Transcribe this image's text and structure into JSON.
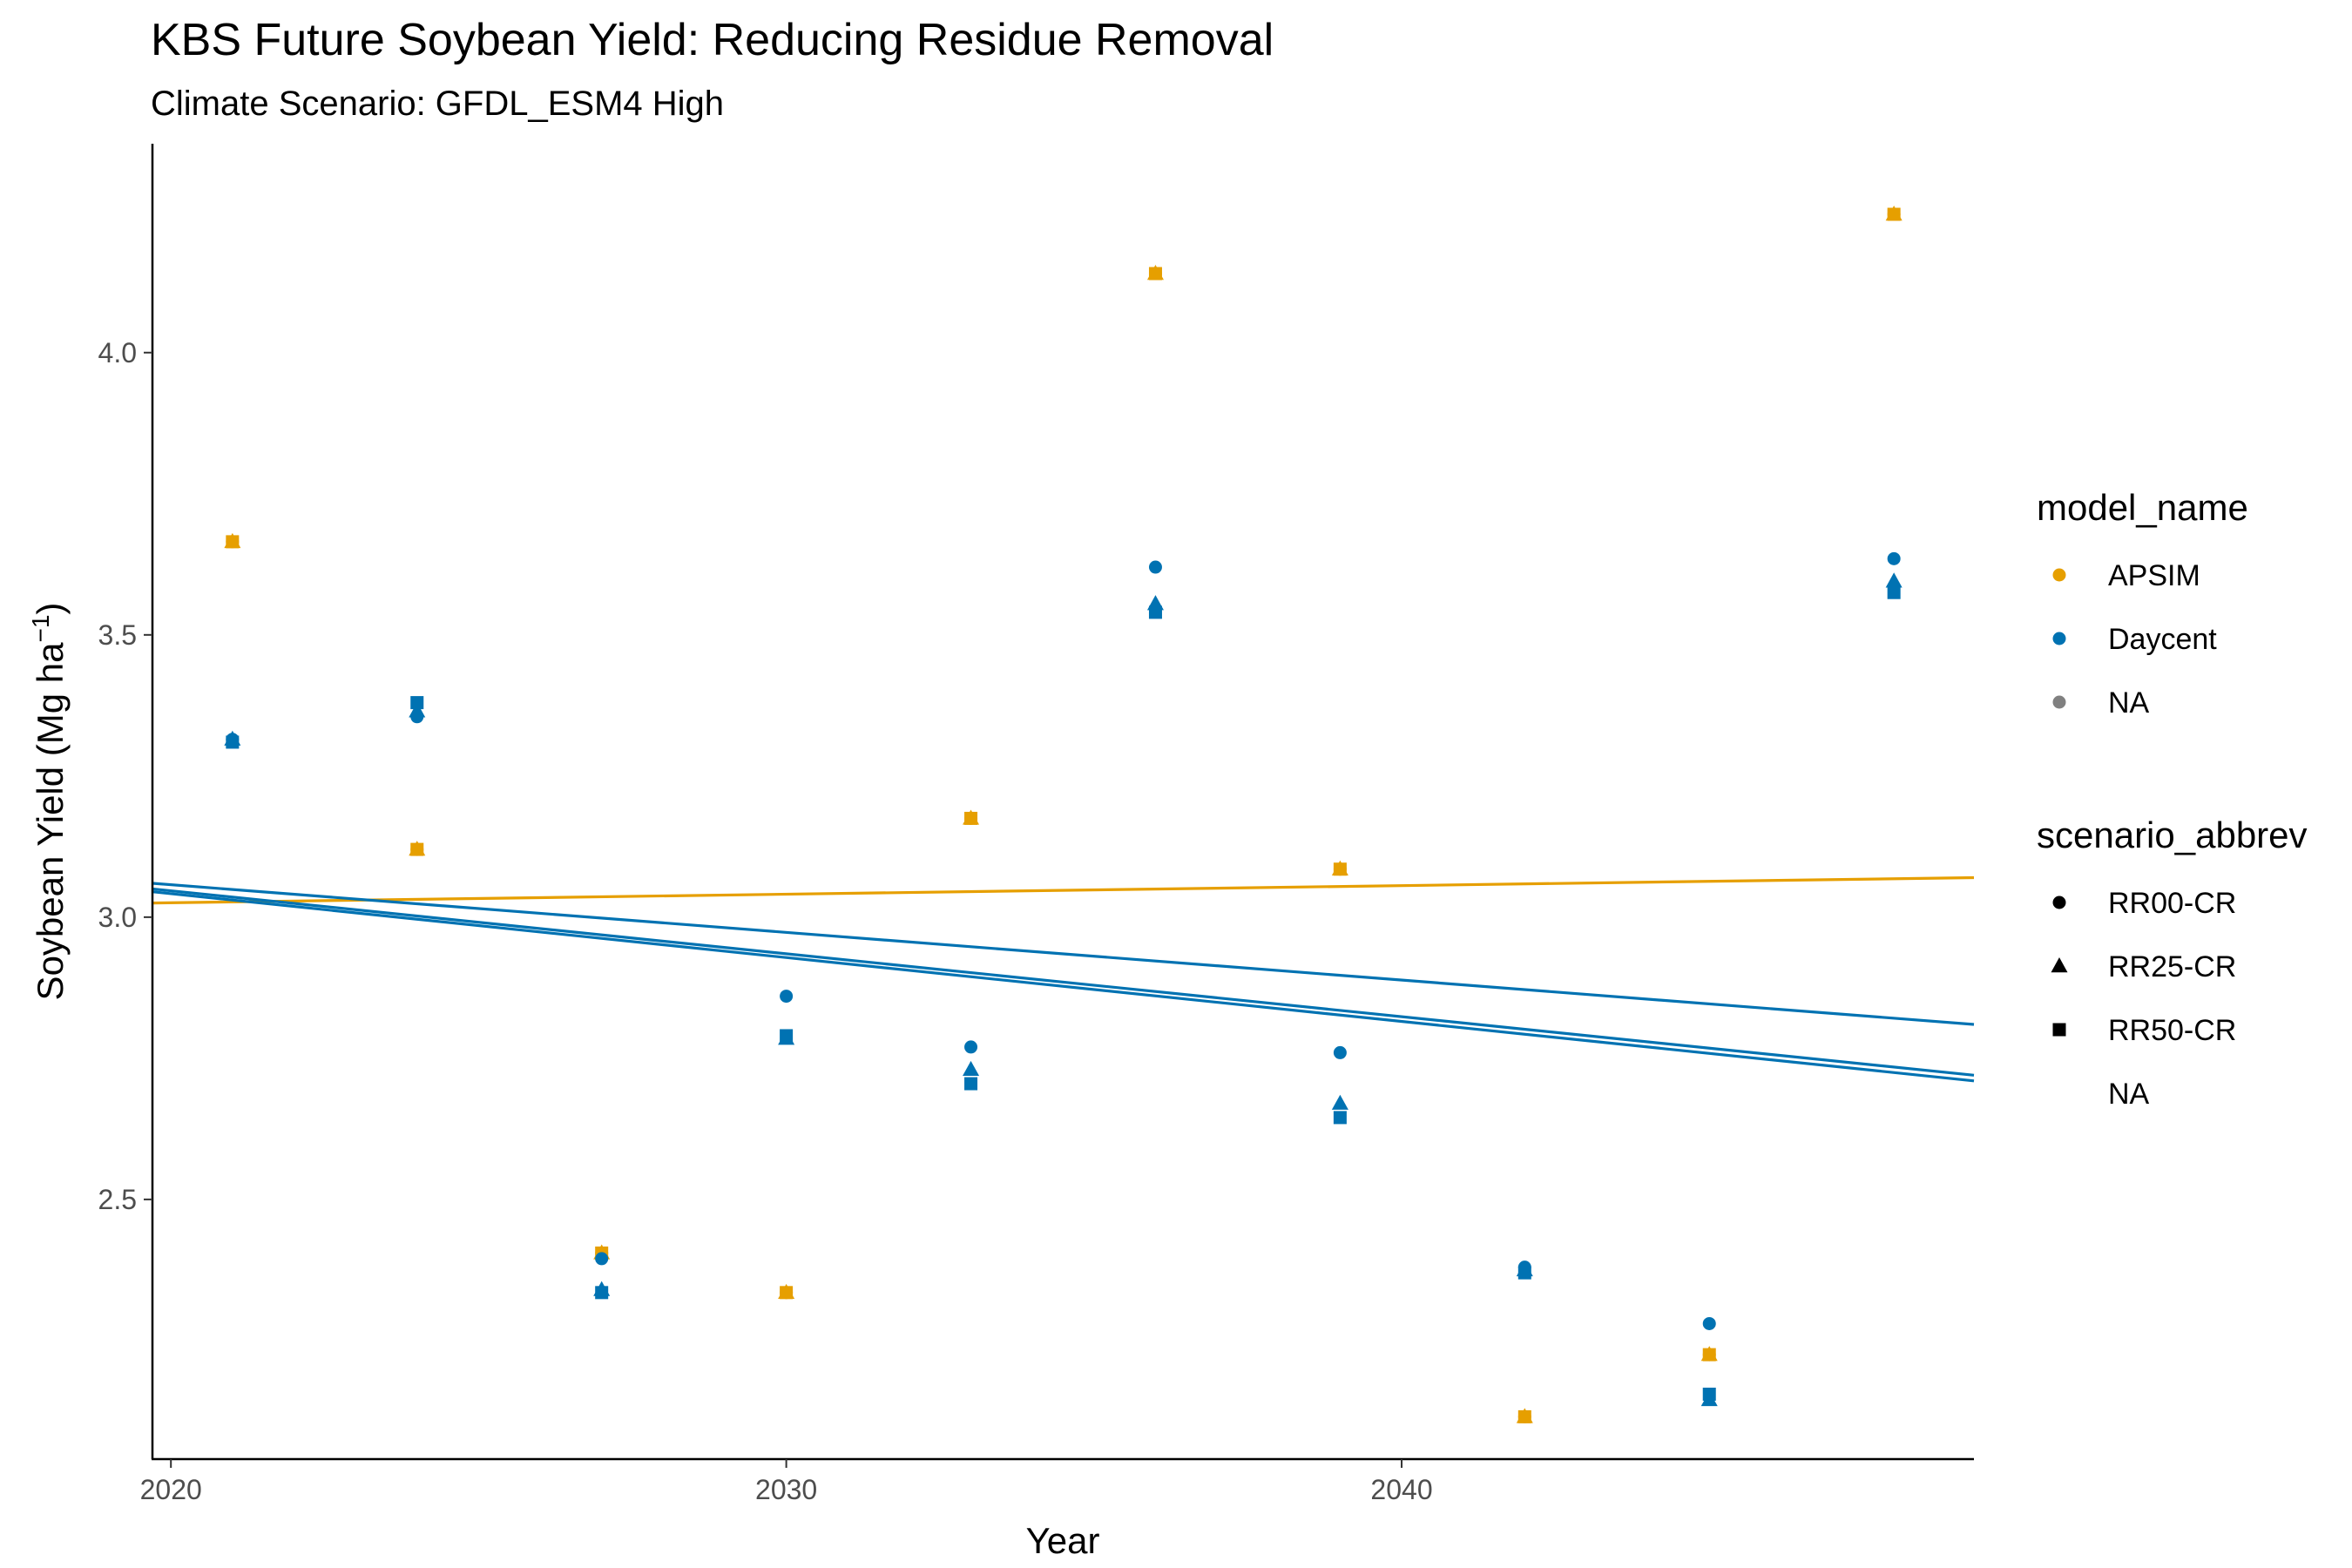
{
  "chart_data": {
    "type": "scatter",
    "title": "KBS Future Soybean Yield: Reducing Residue Removal",
    "subtitle": "Climate Scenario: GFDL_ESM4 High",
    "xlabel": "Year",
    "ylabel_main": "Soybean Yield (Mg ha",
    "ylabel_sup": "−1",
    "ylabel_close": ")",
    "xlim": [
      2019.7,
      2049.3
    ],
    "ylim": [
      2.04,
      4.37
    ],
    "x_ticks": [
      2020,
      2030,
      2040
    ],
    "x_tick_labels": [
      "2020",
      "2030",
      "2040"
    ],
    "y_ticks": [
      2.5,
      3.0,
      3.5,
      4.0
    ],
    "y_tick_labels": [
      "2.5",
      "3.0",
      "3.5",
      "4.0"
    ],
    "grid": false,
    "legend_position": "right",
    "colors": {
      "APSIM": "#E69F00",
      "Daycent": "#0072B2",
      "NA": "#808080"
    },
    "legend": {
      "model_title": "model_name",
      "model_items": [
        {
          "label": "APSIM",
          "color": "#E69F00"
        },
        {
          "label": "Daycent",
          "color": "#0072B2"
        },
        {
          "label": "NA",
          "color": "#808080"
        }
      ],
      "scenario_title": "scenario_abbrev",
      "scenario_items": [
        {
          "label": "RR00-CR",
          "shape": "circle"
        },
        {
          "label": "RR25-CR",
          "shape": "triangle"
        },
        {
          "label": "RR50-CR",
          "shape": "square"
        },
        {
          "label": "NA",
          "shape": "none"
        }
      ]
    },
    "series": [
      {
        "model": "APSIM",
        "scenario": "RR00-CR",
        "x": [
          2021,
          2024,
          2027,
          2030,
          2033,
          2036,
          2039,
          2042,
          2045,
          2048
        ],
        "y": [
          3.665,
          3.12,
          2.405,
          2.335,
          3.175,
          4.14,
          3.085,
          2.115,
          2.225,
          4.245
        ]
      },
      {
        "model": "APSIM",
        "scenario": "RR25-CR",
        "x": [
          2021,
          2024,
          2027,
          2030,
          2033,
          2036,
          2039,
          2042,
          2045,
          2048
        ],
        "y": [
          3.665,
          3.12,
          2.405,
          2.335,
          3.175,
          4.14,
          3.085,
          2.115,
          2.225,
          4.245
        ]
      },
      {
        "model": "APSIM",
        "scenario": "RR50-CR",
        "x": [
          2021,
          2024,
          2027,
          2030,
          2033,
          2036,
          2039,
          2042,
          2045,
          2048
        ],
        "y": [
          3.665,
          3.12,
          2.405,
          2.335,
          3.175,
          4.14,
          3.085,
          2.115,
          2.225,
          4.245
        ]
      },
      {
        "model": "Daycent",
        "scenario": "RR00-CR",
        "x": [
          2021,
          2024,
          2027,
          2030,
          2033,
          2036,
          2039,
          2042,
          2045,
          2048
        ],
        "y": [
          3.315,
          3.355,
          2.395,
          2.86,
          2.77,
          3.62,
          2.76,
          2.38,
          2.28,
          3.635
        ]
      },
      {
        "model": "Daycent",
        "scenario": "RR25-CR",
        "x": [
          2021,
          2024,
          2027,
          2030,
          2033,
          2036,
          2039,
          2042,
          2045,
          2048
        ],
        "y": [
          3.315,
          3.365,
          2.34,
          2.785,
          2.73,
          3.555,
          2.67,
          2.375,
          2.145,
          3.595
        ]
      },
      {
        "model": "Daycent",
        "scenario": "RR50-CR",
        "x": [
          2021,
          2024,
          2027,
          2030,
          2033,
          2036,
          2039,
          2042,
          2045,
          2048
        ],
        "y": [
          3.31,
          3.38,
          2.335,
          2.79,
          2.705,
          3.54,
          2.645,
          2.37,
          2.155,
          3.575
        ]
      }
    ],
    "trend_lines": [
      {
        "model": "APSIM",
        "x": [
          2019.7,
          2049.3
        ],
        "y": [
          3.025,
          3.07
        ]
      },
      {
        "model": "Daycent",
        "x": [
          2019.7,
          2049.3
        ],
        "y": [
          3.06,
          2.81
        ]
      },
      {
        "model": "Daycent",
        "x": [
          2019.7,
          2049.3
        ],
        "y": [
          3.05,
          2.72
        ]
      },
      {
        "model": "Daycent",
        "x": [
          2019.7,
          2049.3
        ],
        "y": [
          3.045,
          2.71
        ]
      }
    ]
  }
}
